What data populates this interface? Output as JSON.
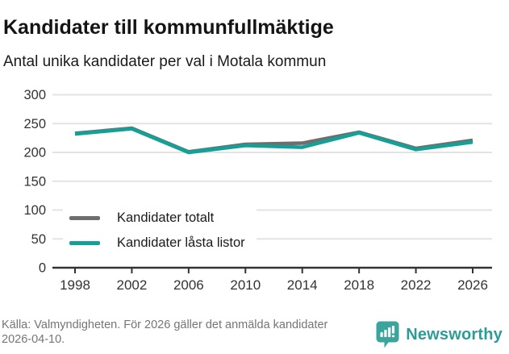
{
  "chart_data": {
    "type": "line",
    "title": "Kandidater till kommunfullmäktige",
    "subtitle": "Antal unika kandidater per val i Motala kommun",
    "x": [
      1998,
      2002,
      2006,
      2010,
      2014,
      2018,
      2022,
      2026
    ],
    "series": [
      {
        "name": "Kandidater totalt",
        "color": "#6e6e6e",
        "values": [
          233,
          242,
          201,
          214,
          216,
          235,
          207,
          221
        ]
      },
      {
        "name": "Kandidater låsta listor",
        "color": "#14a096",
        "values": [
          232,
          241,
          200,
          212,
          209,
          234,
          205,
          218
        ]
      }
    ],
    "ylim": [
      0,
      300
    ],
    "yticks": [
      0,
      50,
      100,
      150,
      200,
      250,
      300
    ],
    "grid": true,
    "legend_position": "inside-lower-left"
  },
  "footer": {
    "source": "Källa: Valmyndigheten. För 2026 gäller det anmälda kandidater 2026-04-10.",
    "brand": "Newsworthy"
  },
  "colors": {
    "grid": "#e3e3e3",
    "axis": "#333333",
    "tick_label": "#333333",
    "muted": "#757575",
    "logo": "#3aa49d"
  }
}
